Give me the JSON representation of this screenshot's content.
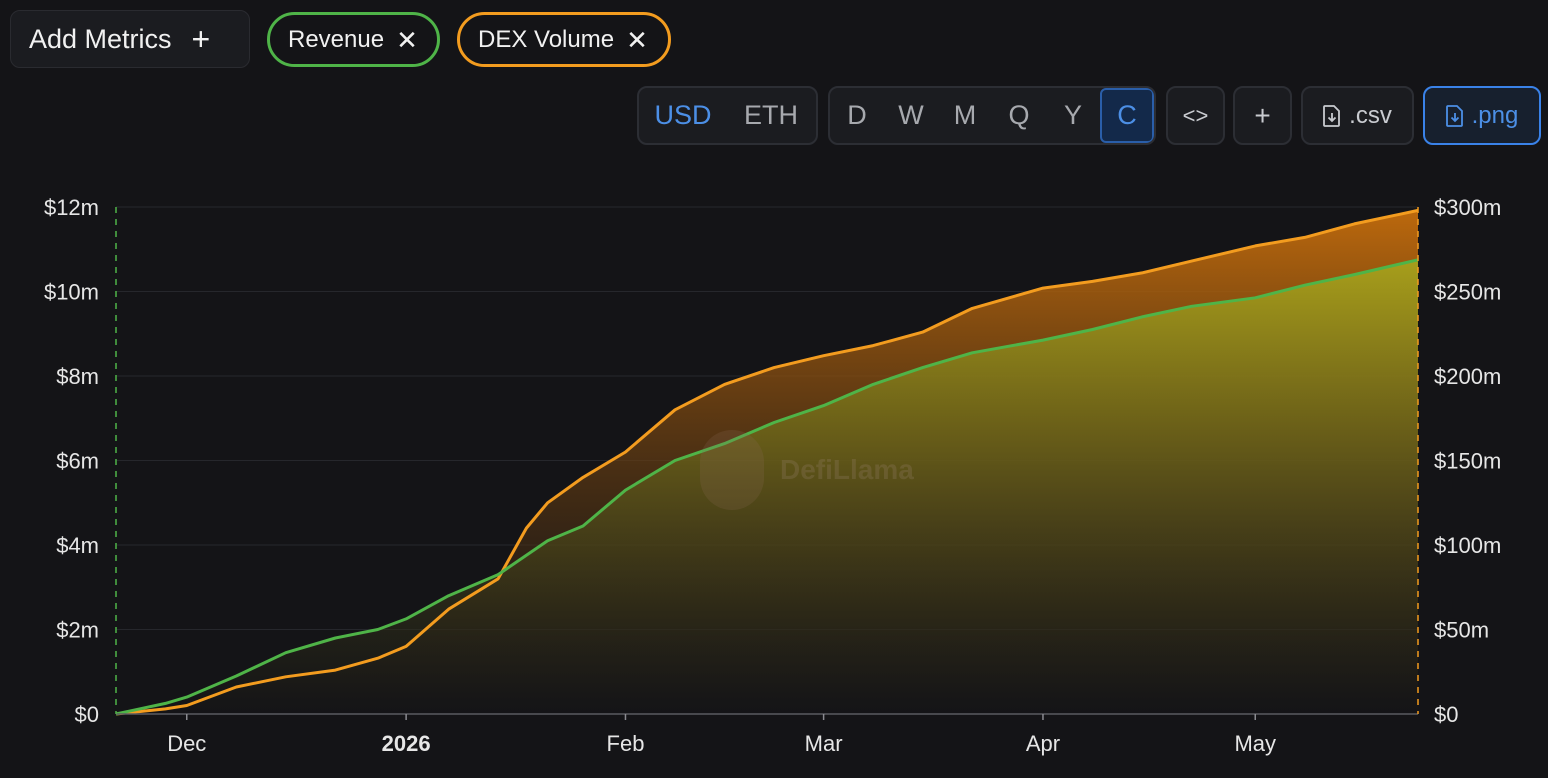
{
  "controls": {
    "add_metrics_label": "Add Metrics",
    "add_icon": "+",
    "chips": [
      {
        "label": "Revenue",
        "color": "#4fb448"
      },
      {
        "label": "DEX Volume",
        "color": "#f39c1f"
      }
    ],
    "currency": [
      "USD",
      "ETH"
    ],
    "currency_active": "USD",
    "periods": [
      "D",
      "W",
      "M",
      "Q",
      "Y",
      "C"
    ],
    "period_active": "C",
    "embed_icon": "<>",
    "add_chart_icon": "+",
    "csv_label": ".csv",
    "png_label": ".png"
  },
  "watermark": "DefiLlama",
  "colors": {
    "revenue": "#4fb448",
    "dex_volume": "#f39c1f",
    "accent": "#4c8fe6",
    "background": "#141417"
  },
  "chart_data": {
    "type": "area",
    "x_ticks": [
      "Dec",
      "2026",
      "Feb",
      "Mar",
      "Apr",
      "May"
    ],
    "x_tick_dates": [
      "2025-12-01",
      "2026-01-01",
      "2026-02-01",
      "2026-03-01",
      "2026-04-01",
      "2026-05-01"
    ],
    "x_range": [
      "2025-11-21",
      "2026-05-24"
    ],
    "left_axis": {
      "ticks": [
        "$0",
        "$2m",
        "$4m",
        "$6m",
        "$8m",
        "$10m",
        "$12m"
      ],
      "ylim": [
        0,
        12000000
      ]
    },
    "right_axis": {
      "ticks": [
        "$0",
        "$50m",
        "$100m",
        "$150m",
        "$200m",
        "$250m",
        "$300m"
      ],
      "ylim": [
        0,
        300000000
      ]
    },
    "grid": true,
    "series": [
      {
        "name": "Revenue",
        "axis": "left",
        "color": "#4fb448",
        "dates": [
          "2025-11-21",
          "2025-11-28",
          "2025-12-01",
          "2025-12-08",
          "2025-12-15",
          "2025-12-22",
          "2025-12-28",
          "2026-01-01",
          "2026-01-07",
          "2026-01-14",
          "2026-01-21",
          "2026-01-26",
          "2026-02-01",
          "2026-02-08",
          "2026-02-15",
          "2026-02-22",
          "2026-03-01",
          "2026-03-08",
          "2026-03-15",
          "2026-03-22",
          "2026-04-01",
          "2026-04-08",
          "2026-04-15",
          "2026-04-22",
          "2026-05-01",
          "2026-05-08",
          "2026-05-15",
          "2026-05-24"
        ],
        "values": [
          0,
          250000,
          400000,
          900000,
          1450000,
          1800000,
          2000000,
          2250000,
          2800000,
          3300000,
          4100000,
          4450000,
          5300000,
          6000000,
          6400000,
          6900000,
          7300000,
          7800000,
          8200000,
          8550000,
          8850000,
          9100000,
          9400000,
          9650000,
          9850000,
          10150000,
          10400000,
          10750000
        ]
      },
      {
        "name": "DEX Volume",
        "axis": "right",
        "color": "#f39c1f",
        "dates": [
          "2025-11-21",
          "2025-11-28",
          "2025-12-01",
          "2025-12-08",
          "2025-12-15",
          "2025-12-22",
          "2025-12-28",
          "2026-01-01",
          "2026-01-07",
          "2026-01-14",
          "2026-01-18",
          "2026-01-21",
          "2026-01-26",
          "2026-02-01",
          "2026-02-08",
          "2026-02-15",
          "2026-02-22",
          "2026-03-01",
          "2026-03-08",
          "2026-03-15",
          "2026-03-22",
          "2026-04-01",
          "2026-04-08",
          "2026-04-15",
          "2026-04-22",
          "2026-05-01",
          "2026-05-08",
          "2026-05-15",
          "2026-05-24"
        ],
        "values": [
          0,
          3000000,
          5000000,
          16000000,
          22000000,
          26000000,
          33000000,
          40000000,
          62000000,
          80000000,
          110000000,
          125000000,
          140000000,
          155000000,
          180000000,
          195000000,
          205000000,
          212000000,
          218000000,
          226000000,
          240000000,
          252000000,
          256000000,
          261000000,
          268000000,
          277000000,
          282000000,
          290000000,
          298000000
        ]
      }
    ]
  }
}
